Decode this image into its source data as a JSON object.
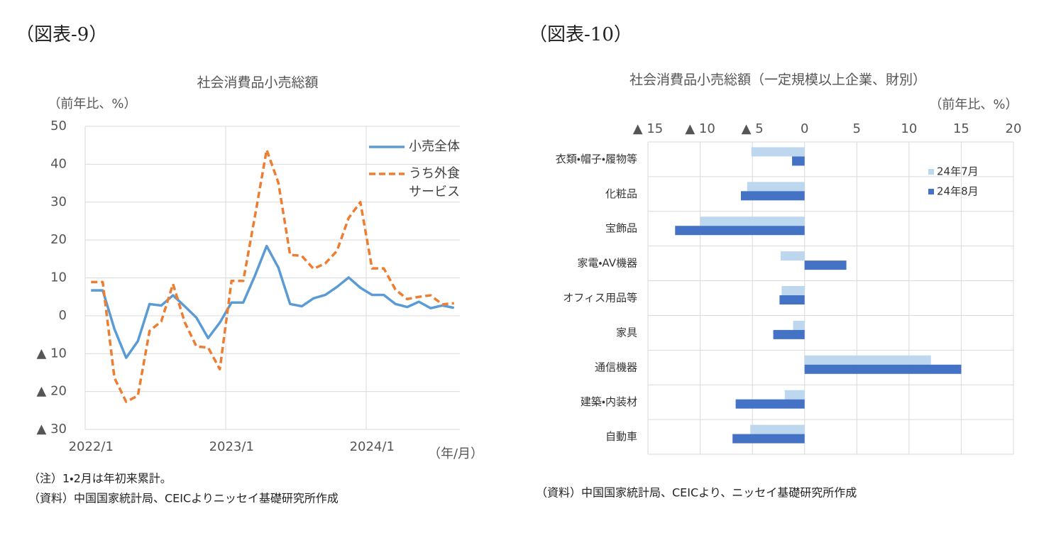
{
  "chart_data": [
    {
      "type": "line",
      "figure_label": "（図表-9）",
      "title": "社会消費品小売総額",
      "y_label": "（前年比、%）",
      "x_label": "（年/月）",
      "categories": [
        "2022/1",
        null,
        null,
        null,
        null,
        null,
        null,
        null,
        null,
        null,
        null,
        null,
        "2023/1",
        null,
        null,
        null,
        null,
        null,
        null,
        null,
        null,
        null,
        null,
        null,
        "2024/1",
        null,
        null,
        null,
        null,
        null,
        null,
        null
      ],
      "series": [
        {
          "name": "小売全体",
          "color": "#5b9bd5",
          "dash": false,
          "values": [
            6.7,
            6.7,
            -3.5,
            -11.1,
            -6.7,
            3.1,
            2.7,
            5.4,
            2.5,
            -0.5,
            -5.9,
            -1.8,
            3.5,
            3.5,
            10.6,
            18.4,
            12.7,
            3.1,
            2.5,
            4.6,
            5.5,
            7.6,
            10.1,
            7.4,
            5.5,
            5.5,
            3.1,
            2.3,
            3.7,
            2.0,
            2.7,
            2.1
          ]
        },
        {
          "name": "うち外食サービス",
          "color": "#ed7d31",
          "dash": true,
          "values": [
            8.9,
            8.9,
            -16.4,
            -22.7,
            -21.1,
            -4.0,
            -1.5,
            8.4,
            -1.7,
            -8.1,
            -8.4,
            -14.1,
            9.2,
            9.2,
            26.3,
            43.8,
            35.1,
            16.1,
            15.8,
            12.4,
            13.8,
            17.1,
            25.8,
            30.0,
            12.5,
            12.5,
            6.9,
            4.4,
            5.0,
            5.4,
            3.0,
            3.3
          ]
        }
      ],
      "ylim": [
        -30,
        50
      ],
      "yticks": [
        {
          "value": -30,
          "label": "▲ 30"
        },
        {
          "value": -20,
          "label": "▲ 20"
        },
        {
          "value": -10,
          "label": "▲ 10"
        },
        0,
        10,
        20,
        30,
        40,
        50
      ],
      "grid": true,
      "legend": "upper right",
      "notes": [
        "（注）1・2月は年初来累計。",
        "（資料）中国国家統計局、CEICよりニッセイ基礎研究所作成"
      ]
    },
    {
      "type": "barh",
      "figure_label": "（図表-10）",
      "title": "社会消費品小売総額（一定規模以上企業、財別）",
      "x_label": "（前年比、%）",
      "categories": [
        "衣類・帽子・履物等",
        "化粧品",
        "宝飾品",
        "家電・AV機器",
        "オフィス用品等",
        "家具",
        "通信機器",
        "建築・内装材",
        "自動車"
      ],
      "series": [
        {
          "name": "24年7月",
          "color": "#bdd7ee",
          "values": [
            -5.1,
            -5.5,
            -10.0,
            -2.3,
            -2.2,
            -1.1,
            12.1,
            -1.9,
            -5.2
          ]
        },
        {
          "name": "24年8月",
          "color": "#4472c4",
          "values": [
            -1.2,
            -6.1,
            -12.4,
            4.0,
            -2.4,
            -3.0,
            15.0,
            -6.6,
            -6.9
          ]
        }
      ],
      "xlim": [
        -15,
        20
      ],
      "xticks": [
        {
          "value": -15,
          "label": "▲ 15"
        },
        {
          "value": -10,
          "label": "▲ 10"
        },
        {
          "value": -5,
          "label": "▲ 5"
        },
        0,
        5,
        10,
        15,
        20
      ],
      "grid": true,
      "legend": "upper right",
      "notes": [
        "（資料）中国国家統計局、CEICより、ニッセイ基礎研究所作成"
      ]
    }
  ]
}
